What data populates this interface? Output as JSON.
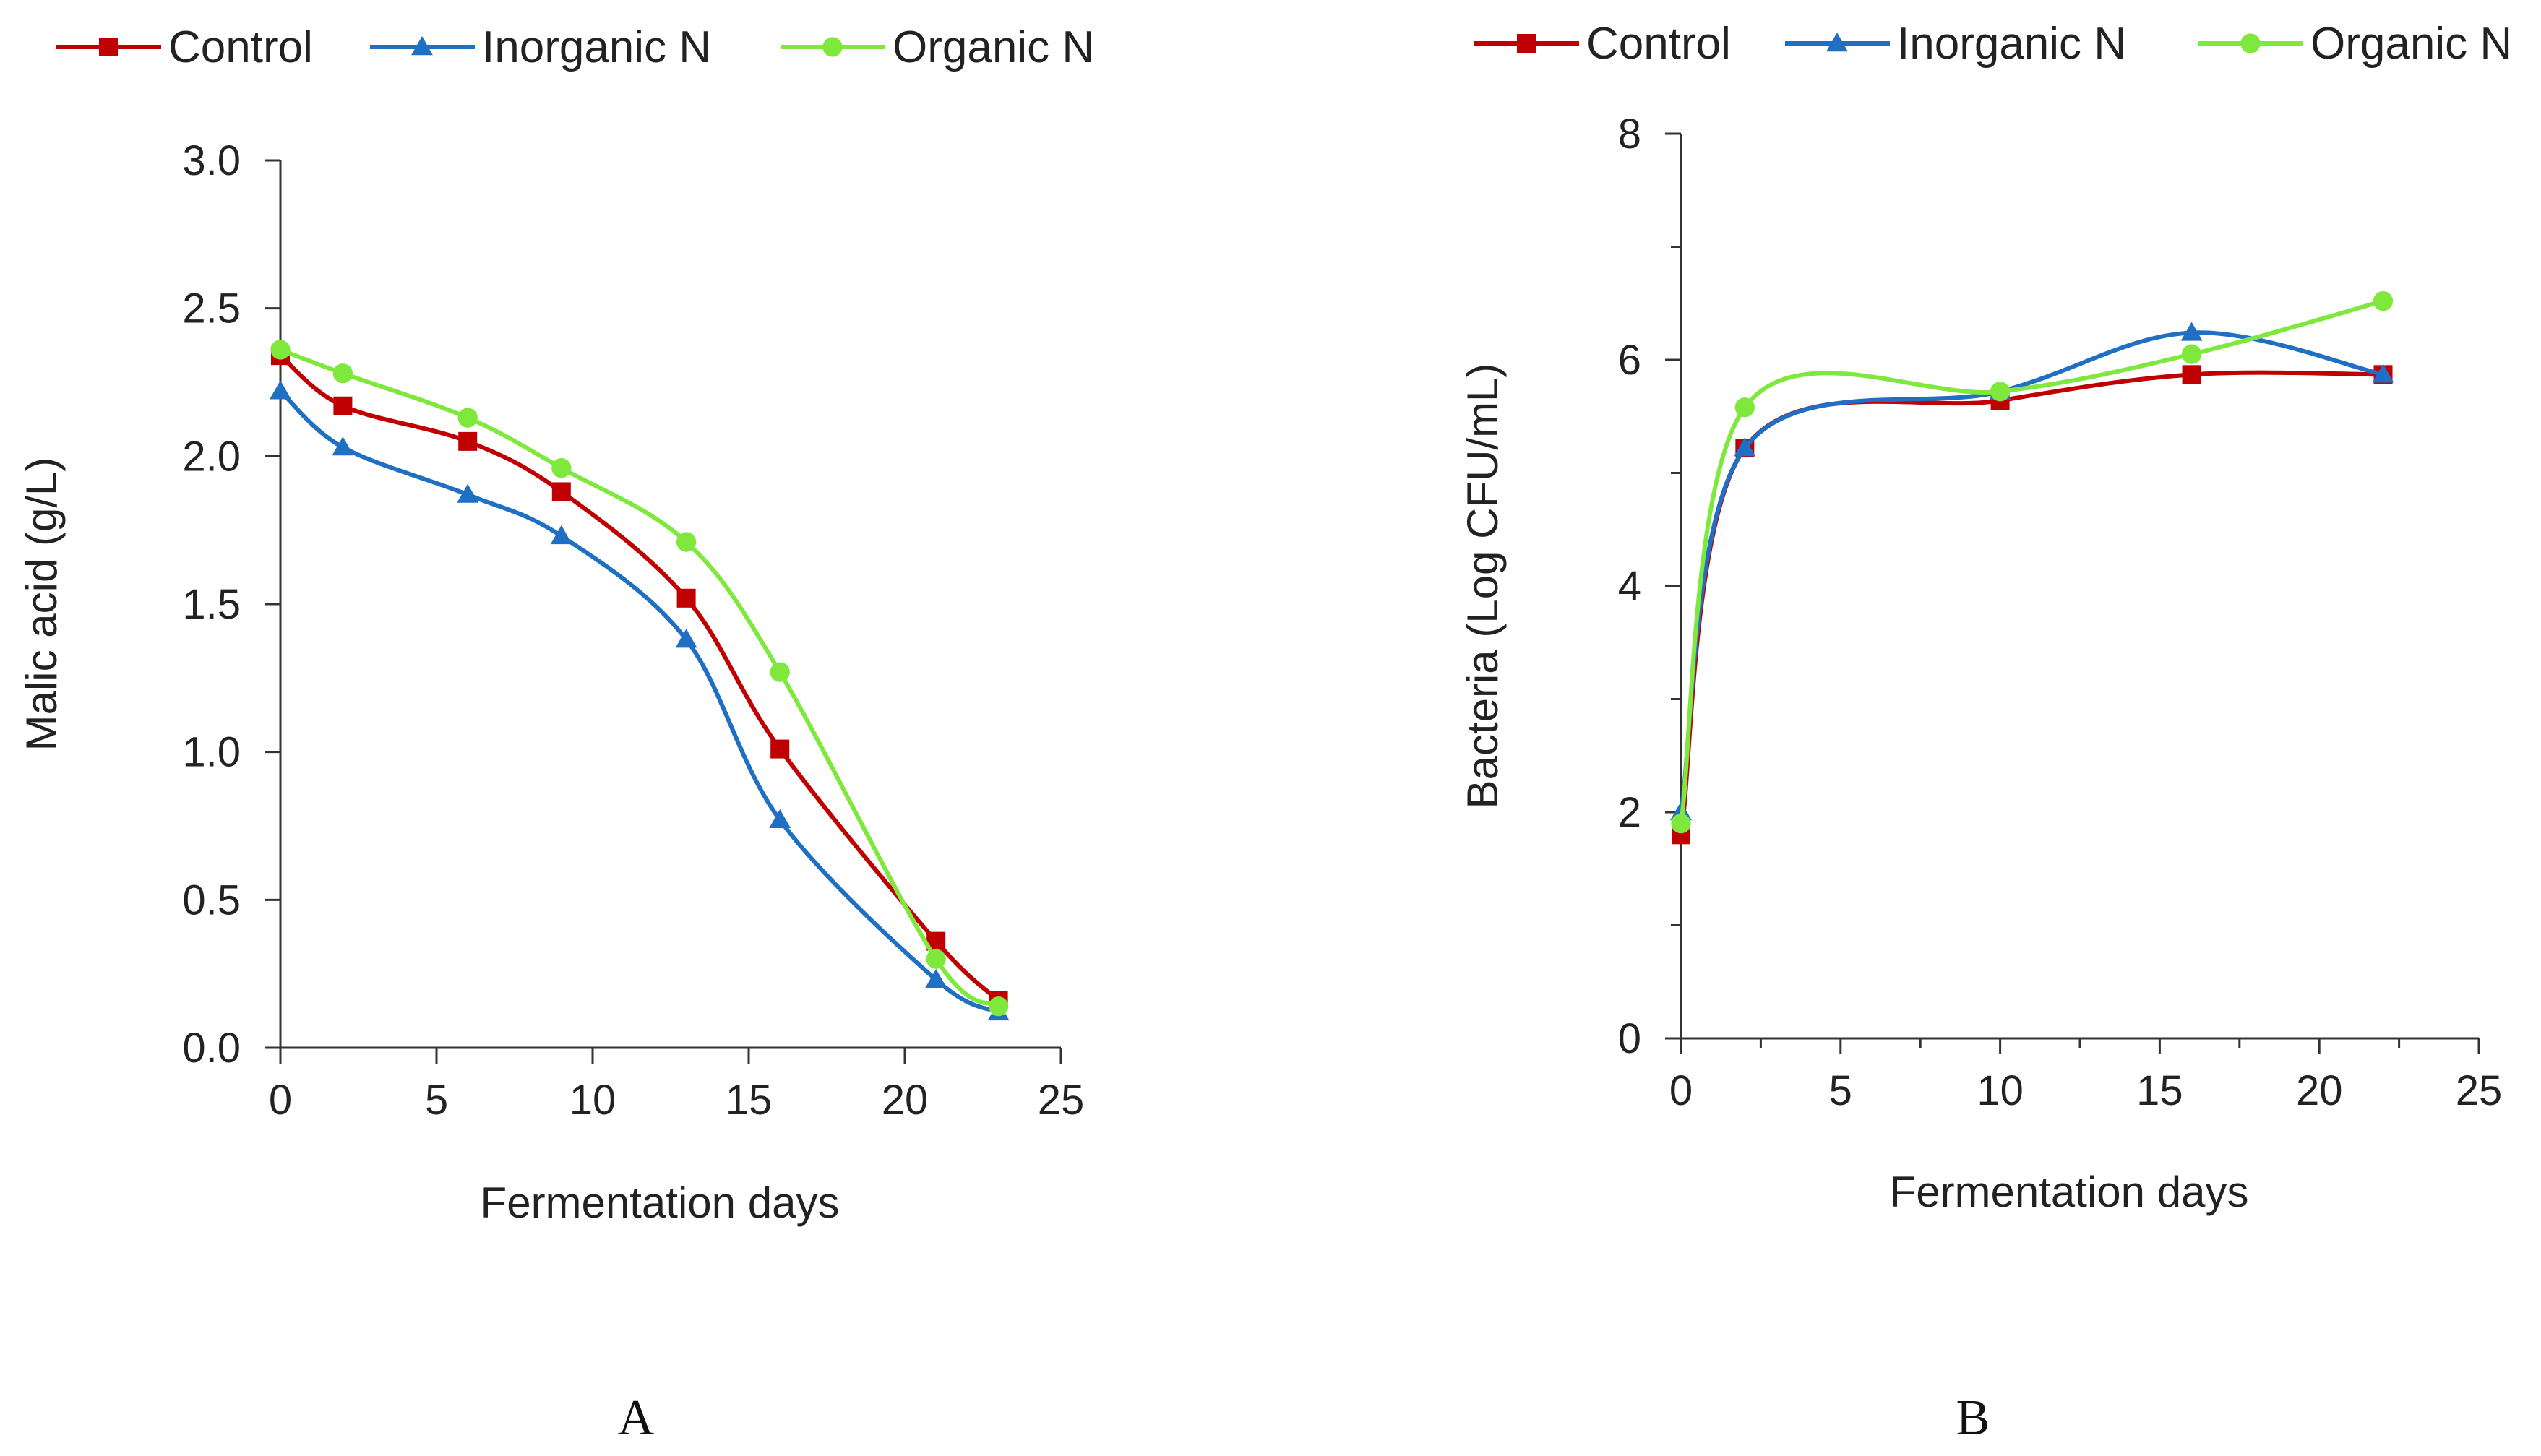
{
  "colors": {
    "control": "#c00000",
    "inorganic": "#1f6fc5",
    "organic": "#7ee83c",
    "axis": "#333333"
  },
  "chart_data": [
    {
      "type": "line",
      "panel_label": "A",
      "xlabel": "Fermentation days",
      "ylabel": "Malic acid (g/L)",
      "xlim": [
        0,
        25
      ],
      "ylim": [
        0,
        3
      ],
      "xticks": [
        0,
        5,
        10,
        15,
        20,
        25
      ],
      "yticks": [
        0,
        0.5,
        1.0,
        1.5,
        2.0,
        2.5,
        3.0
      ],
      "xtick_labels": [
        "0",
        "5",
        "10",
        "15",
        "20",
        "25"
      ],
      "ytick_labels": [
        "0.0",
        "0.5",
        "1.0",
        "1.5",
        "2.0",
        "2.5",
        "3.0"
      ],
      "grid": false,
      "legend_position": "top",
      "series": [
        {
          "name": "Control",
          "marker": "square",
          "color_key": "control",
          "x": [
            0,
            2,
            6,
            9,
            13,
            16,
            21,
            23
          ],
          "y": [
            2.34,
            2.17,
            2.05,
            1.88,
            1.52,
            1.01,
            0.36,
            0.16
          ]
        },
        {
          "name": "Inorganic N",
          "marker": "triangle",
          "color_key": "inorganic",
          "x": [
            0,
            2,
            6,
            9,
            13,
            16,
            21,
            23
          ],
          "y": [
            2.22,
            2.03,
            1.87,
            1.73,
            1.38,
            0.77,
            0.23,
            0.12
          ]
        },
        {
          "name": "Organic N",
          "marker": "circle",
          "color_key": "organic",
          "x": [
            0,
            2,
            6,
            9,
            13,
            16,
            21,
            23
          ],
          "y": [
            2.36,
            2.28,
            2.13,
            1.96,
            1.71,
            1.27,
            0.3,
            0.14
          ]
        }
      ]
    },
    {
      "type": "line",
      "panel_label": "B",
      "xlabel": "Fermentation days",
      "ylabel": "Bacteria  (Log CFU/mL)",
      "xlim": [
        0,
        25
      ],
      "ylim": [
        0,
        8
      ],
      "xticks": [
        0,
        5,
        10,
        15,
        20,
        25
      ],
      "yticks": [
        0,
        2,
        4,
        6,
        8
      ],
      "xtick_labels": [
        "0",
        "5",
        "10",
        "15",
        "20",
        "25"
      ],
      "ytick_labels": [
        "0",
        "2",
        "4",
        "6",
        "8"
      ],
      "minor_ticks": true,
      "grid": false,
      "legend_position": "top",
      "series": [
        {
          "name": "Control",
          "marker": "square",
          "color_key": "control",
          "x": [
            0,
            2,
            10,
            16,
            22
          ],
          "y": [
            1.8,
            5.22,
            5.64,
            5.87,
            5.87
          ]
        },
        {
          "name": "Inorganic N",
          "marker": "triangle",
          "color_key": "inorganic",
          "x": [
            0,
            2,
            10,
            16,
            22
          ],
          "y": [
            2.0,
            5.22,
            5.72,
            6.24,
            5.87
          ]
        },
        {
          "name": "Organic N",
          "marker": "circle",
          "color_key": "organic",
          "x": [
            0,
            2,
            10,
            16,
            22
          ],
          "y": [
            1.9,
            5.58,
            5.72,
            6.05,
            6.52
          ]
        }
      ]
    }
  ]
}
